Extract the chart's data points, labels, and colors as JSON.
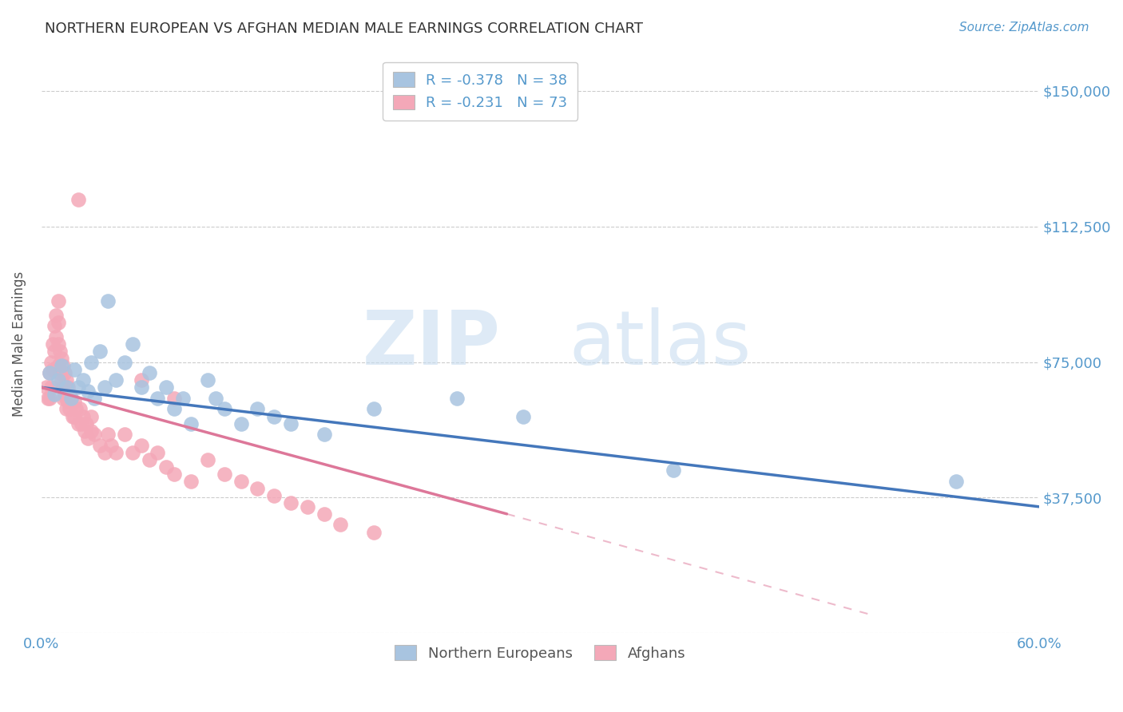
{
  "title": "NORTHERN EUROPEAN VS AFGHAN MEDIAN MALE EARNINGS CORRELATION CHART",
  "source": "Source: ZipAtlas.com",
  "ylabel": "Median Male Earnings",
  "yticks": [
    0,
    37500,
    75000,
    112500,
    150000
  ],
  "ytick_labels": [
    "",
    "$37,500",
    "$75,000",
    "$112,500",
    "$150,000"
  ],
  "xlim": [
    0.0,
    0.6
  ],
  "ylim": [
    0,
    160000
  ],
  "legend_entries": [
    {
      "color": "#a8c4e0",
      "label": "R = -0.378   N = 38"
    },
    {
      "color": "#f4a8b8",
      "label": "R = -0.231   N = 73"
    }
  ],
  "legend_bottom": [
    "Northern Europeans",
    "Afghans"
  ],
  "background_color": "#ffffff",
  "grid_color": "#cccccc",
  "title_color": "#333333",
  "axis_color": "#5599cc",
  "blue_scatter_color": "#a8c4e0",
  "pink_scatter_color": "#f4a8b8",
  "blue_line_color": "#4477bb",
  "pink_line_color": "#dd7799",
  "blue_scatter_x": [
    0.005,
    0.008,
    0.01,
    0.012,
    0.015,
    0.018,
    0.02,
    0.022,
    0.025,
    0.028,
    0.03,
    0.032,
    0.035,
    0.038,
    0.04,
    0.045,
    0.05,
    0.055,
    0.06,
    0.065,
    0.07,
    0.075,
    0.08,
    0.085,
    0.09,
    0.1,
    0.105,
    0.11,
    0.12,
    0.13,
    0.14,
    0.15,
    0.17,
    0.2,
    0.25,
    0.29,
    0.38,
    0.55
  ],
  "blue_scatter_y": [
    72000,
    66000,
    70000,
    74000,
    68000,
    65000,
    73000,
    68000,
    70000,
    67000,
    75000,
    65000,
    78000,
    68000,
    92000,
    70000,
    75000,
    80000,
    68000,
    72000,
    65000,
    68000,
    62000,
    65000,
    58000,
    70000,
    65000,
    62000,
    58000,
    62000,
    60000,
    58000,
    55000,
    62000,
    65000,
    60000,
    45000,
    42000
  ],
  "pink_scatter_x": [
    0.003,
    0.004,
    0.005,
    0.005,
    0.006,
    0.006,
    0.007,
    0.007,
    0.008,
    0.008,
    0.009,
    0.009,
    0.01,
    0.01,
    0.01,
    0.01,
    0.011,
    0.011,
    0.012,
    0.012,
    0.013,
    0.013,
    0.013,
    0.014,
    0.014,
    0.015,
    0.015,
    0.015,
    0.016,
    0.016,
    0.017,
    0.017,
    0.018,
    0.019,
    0.02,
    0.02,
    0.021,
    0.022,
    0.023,
    0.024,
    0.025,
    0.026,
    0.027,
    0.028,
    0.03,
    0.03,
    0.032,
    0.035,
    0.038,
    0.04,
    0.042,
    0.045,
    0.05,
    0.055,
    0.06,
    0.065,
    0.07,
    0.075,
    0.08,
    0.09,
    0.1,
    0.11,
    0.12,
    0.13,
    0.14,
    0.15,
    0.16,
    0.17,
    0.18,
    0.2,
    0.06,
    0.08,
    0.022
  ],
  "pink_scatter_y": [
    68000,
    65000,
    72000,
    65000,
    75000,
    68000,
    80000,
    73000,
    85000,
    78000,
    88000,
    82000,
    92000,
    86000,
    80000,
    74000,
    78000,
    72000,
    76000,
    70000,
    74000,
    68000,
    65000,
    72000,
    66000,
    70000,
    65000,
    62000,
    68000,
    64000,
    66000,
    62000,
    65000,
    60000,
    64000,
    60000,
    62000,
    58000,
    62000,
    58000,
    60000,
    56000,
    58000,
    54000,
    60000,
    56000,
    55000,
    52000,
    50000,
    55000,
    52000,
    50000,
    55000,
    50000,
    52000,
    48000,
    50000,
    46000,
    44000,
    42000,
    48000,
    44000,
    42000,
    40000,
    38000,
    36000,
    35000,
    33000,
    30000,
    28000,
    70000,
    65000,
    120000
  ],
  "blue_line": [
    [
      0.0,
      68000
    ],
    [
      0.6,
      35000
    ]
  ],
  "pink_line_solid": [
    [
      0.0,
      68000
    ],
    [
      0.28,
      33000
    ]
  ],
  "pink_line_dashed": [
    [
      0.28,
      33000
    ],
    [
      0.5,
      5000
    ]
  ]
}
